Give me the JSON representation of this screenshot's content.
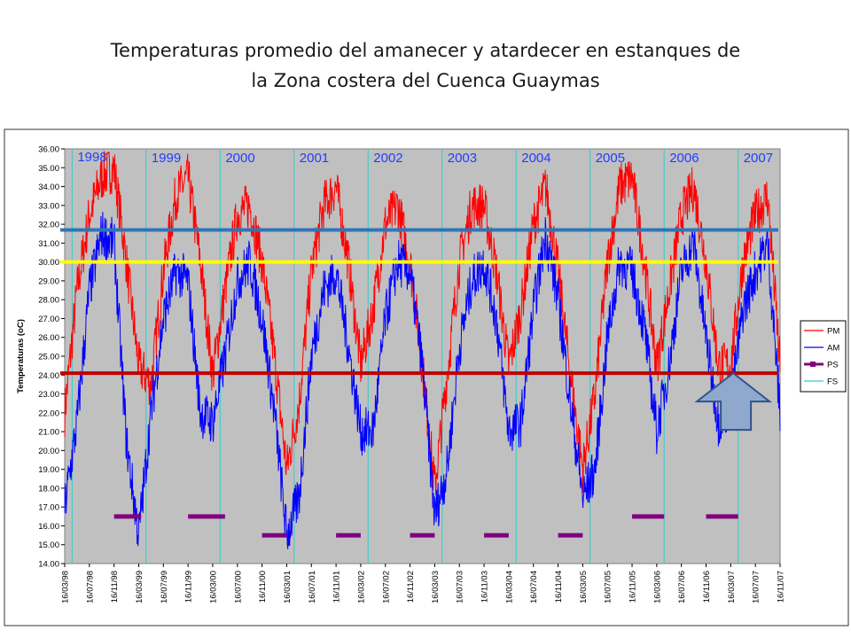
{
  "title": {
    "line1": "Temperaturas promedio del amanecer y atardecer en estanques de",
    "line2": "la Zona costera del Cuenca Guaymas"
  },
  "chart_data": {
    "type": "line",
    "ylabel": "Temperaturas (oC)",
    "xlabel": "",
    "ylim": [
      14.0,
      36.0
    ],
    "ytick_step": 1.0,
    "grid": false,
    "legend_position": "right",
    "x_tick_labels": [
      "16/03/98",
      "16/07/98",
      "16/11/98",
      "16/03/99",
      "16/07/99",
      "16/11/99",
      "16/03/00",
      "16/07/00",
      "16/11/00",
      "16/03/01",
      "16/07/01",
      "16/11/01",
      "16/03/02",
      "16/07/02",
      "16/11/02",
      "16/03/03",
      "16/07/03",
      "16/11/03",
      "16/03/04",
      "16/07/04",
      "16/11/04",
      "16/03/05",
      "16/07/05",
      "16/11/05",
      "16/03/06",
      "16/07/06",
      "16/11/06",
      "16/03/07",
      "16/07/07",
      "16/11/07"
    ],
    "year_labels": [
      "1998",
      "1999",
      "2000",
      "2001",
      "2002",
      "2003",
      "2004",
      "2005",
      "2006",
      "2007"
    ],
    "year_label_positions": [
      0.3,
      3.3,
      6.3,
      9.3,
      12.3,
      15.3,
      18.3,
      21.3,
      24.3,
      27.3
    ],
    "series": [
      {
        "name": "PM",
        "color": "#ff0000",
        "x": [
          0,
          0.5,
          1,
          1.5,
          2,
          2.5,
          3,
          3.5,
          4,
          4.5,
          5,
          5.5,
          6,
          6.5,
          7,
          7.5,
          8,
          8.5,
          9,
          9.5,
          10,
          10.5,
          11,
          11.5,
          12,
          12.5,
          13,
          13.5,
          14,
          14.5,
          15,
          15.5,
          16,
          16.5,
          17,
          17.5,
          18,
          18.5,
          19,
          19.5,
          20,
          20.5,
          21,
          21.5,
          22,
          22.5,
          23,
          23.5,
          24,
          24.5,
          25,
          25.5,
          26,
          26.5,
          27,
          27.5,
          28,
          28.5,
          29
        ],
        "y": [
          22.0,
          28.5,
          32.5,
          34.5,
          35.0,
          30.0,
          24.5,
          23.5,
          29.5,
          33.5,
          34.5,
          30.0,
          24.0,
          28.5,
          32.5,
          33.0,
          30.0,
          25.0,
          19.0,
          22.5,
          29.5,
          33.0,
          34.0,
          30.0,
          24.5,
          27.5,
          32.0,
          33.0,
          30.0,
          24.5,
          18.0,
          24.0,
          30.0,
          33.0,
          33.0,
          29.5,
          24.5,
          27.5,
          32.0,
          34.0,
          29.5,
          24.0,
          19.0,
          23.0,
          30.0,
          34.0,
          34.5,
          30.0,
          24.5,
          28.5,
          32.5,
          34.0,
          30.0,
          24.5,
          24.5,
          30.0,
          32.5,
          33.5,
          24.5
        ]
      },
      {
        "name": "AM",
        "color": "#0000ff",
        "x": [
          0,
          0.5,
          1,
          1.5,
          2,
          2.5,
          3,
          3.5,
          4,
          4.5,
          5,
          5.5,
          6,
          6.5,
          7,
          7.5,
          8,
          8.5,
          9,
          9.5,
          10,
          10.5,
          11,
          11.5,
          12,
          12.5,
          13,
          13.5,
          14,
          14.5,
          15,
          15.5,
          16,
          16.5,
          17,
          17.5,
          18,
          18.5,
          19,
          19.5,
          20,
          20.5,
          21,
          21.5,
          22,
          22.5,
          23,
          23.5,
          24,
          24.5,
          25,
          25.5,
          26,
          26.5,
          27,
          27.5,
          28,
          28.5,
          29
        ],
        "y": [
          17.0,
          21.5,
          28.5,
          31.5,
          31.0,
          20.5,
          15.5,
          22.0,
          27.0,
          29.5,
          29.0,
          22.0,
          21.5,
          25.0,
          29.0,
          30.0,
          27.0,
          22.0,
          15.5,
          17.5,
          25.0,
          28.5,
          29.5,
          25.5,
          21.0,
          21.0,
          27.0,
          30.0,
          29.5,
          24.5,
          16.5,
          19.0,
          25.5,
          29.0,
          30.0,
          27.0,
          21.0,
          21.5,
          27.5,
          31.5,
          28.0,
          22.5,
          17.5,
          19.0,
          26.0,
          30.0,
          29.5,
          26.5,
          21.0,
          24.5,
          29.5,
          31.0,
          26.0,
          21.5,
          22.5,
          27.5,
          29.5,
          31.0,
          22.0
        ]
      },
      {
        "name": "PS",
        "color": "#800080",
        "segments": [
          [
            2,
            3.1,
            16.5
          ],
          [
            5,
            6.5,
            16.5
          ],
          [
            8,
            9,
            15.5
          ],
          [
            11,
            12,
            15.5
          ],
          [
            14,
            15,
            15.5
          ],
          [
            17,
            18,
            15.5
          ],
          [
            20,
            21,
            15.5
          ],
          [
            23,
            24.3,
            16.5
          ],
          [
            26,
            27.3,
            16.5
          ]
        ]
      },
      {
        "name": "FS",
        "color": "#33cccc",
        "x_positions": [
          0.3,
          3.3,
          6.3,
          9.3,
          12.3,
          15.3,
          18.3,
          21.3,
          24.3,
          27.3
        ]
      }
    ],
    "reference_lines": [
      {
        "y": 31.7,
        "color": "#2e75b6"
      },
      {
        "y": 30.0,
        "color": "#ffff00"
      },
      {
        "y": 24.1,
        "color": "#c00000"
      }
    ],
    "annotation_arrow": {
      "x": 27.1,
      "y_tip": 24.1,
      "color": "#8ea9cc",
      "outline": "#2f528f"
    }
  }
}
